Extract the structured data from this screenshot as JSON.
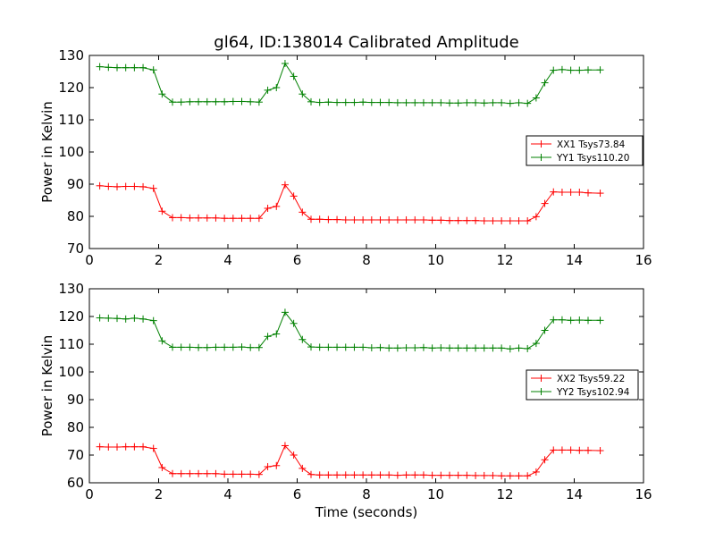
{
  "figure": {
    "title": "gl64, ID:138014 Calibrated Amplitude",
    "xlabel": "Time (seconds)"
  },
  "chart_data": [
    {
      "type": "line",
      "title": "gl64, ID:138014 Calibrated Amplitude",
      "xlabel": "",
      "ylabel": "Power in Kelvin",
      "xlim": [
        0,
        16
      ],
      "ylim": [
        70,
        130
      ],
      "xticks": [
        0,
        2,
        4,
        6,
        8,
        10,
        12,
        14,
        16
      ],
      "yticks": [
        70,
        80,
        90,
        100,
        110,
        120,
        130
      ],
      "grid": false,
      "legend_position": "center-right",
      "marker": "+",
      "x": [
        0.3,
        0.55,
        0.8,
        1.05,
        1.3,
        1.55,
        1.85,
        2.1,
        2.4,
        2.65,
        2.9,
        3.15,
        3.4,
        3.65,
        3.9,
        4.15,
        4.4,
        4.65,
        4.9,
        5.15,
        5.4,
        5.65,
        5.9,
        6.15,
        6.4,
        6.65,
        6.9,
        7.15,
        7.4,
        7.65,
        7.9,
        8.15,
        8.4,
        8.65,
        8.9,
        9.15,
        9.4,
        9.65,
        9.9,
        10.15,
        10.4,
        10.65,
        10.9,
        11.15,
        11.4,
        11.65,
        11.9,
        12.15,
        12.4,
        12.65,
        12.9,
        13.15,
        13.4,
        13.65,
        13.9,
        14.15,
        14.4,
        14.75
      ],
      "series": [
        {
          "name": "XX1 Tsys73.84",
          "color": "#ff0000",
          "values": [
            89.5,
            89.3,
            89.2,
            89.3,
            89.3,
            89.2,
            88.7,
            81.6,
            79.6,
            79.6,
            79.5,
            79.5,
            79.5,
            79.5,
            79.4,
            79.4,
            79.4,
            79.4,
            79.4,
            82.5,
            83.1,
            89.8,
            86.3,
            81.3,
            79.1,
            79.1,
            79.0,
            79.0,
            78.9,
            78.9,
            78.9,
            78.9,
            78.9,
            78.9,
            78.9,
            78.9,
            78.9,
            78.9,
            78.8,
            78.8,
            78.7,
            78.7,
            78.7,
            78.7,
            78.6,
            78.6,
            78.6,
            78.6,
            78.6,
            78.6,
            79.9,
            84.0,
            87.6,
            87.5,
            87.5,
            87.5,
            87.3,
            87.2
          ]
        },
        {
          "name": "YY1 Tsys110.20",
          "color": "#008000",
          "values": [
            126.5,
            126.3,
            126.2,
            126.2,
            126.2,
            126.2,
            125.5,
            118.0,
            115.5,
            115.5,
            115.6,
            115.6,
            115.6,
            115.6,
            115.6,
            115.7,
            115.7,
            115.6,
            115.5,
            119.2,
            120.0,
            127.5,
            123.5,
            118.0,
            115.6,
            115.4,
            115.5,
            115.4,
            115.4,
            115.4,
            115.5,
            115.4,
            115.4,
            115.4,
            115.3,
            115.3,
            115.3,
            115.3,
            115.3,
            115.3,
            115.2,
            115.2,
            115.3,
            115.3,
            115.2,
            115.3,
            115.3,
            115.1,
            115.3,
            115.1,
            116.8,
            121.5,
            125.4,
            125.6,
            125.4,
            125.4,
            125.5,
            125.5
          ]
        }
      ]
    },
    {
      "type": "line",
      "title": "",
      "xlabel": "Time (seconds)",
      "ylabel": "Power in Kelvin",
      "xlim": [
        0,
        16
      ],
      "ylim": [
        60,
        130
      ],
      "xticks": [
        0,
        2,
        4,
        6,
        8,
        10,
        12,
        14,
        16
      ],
      "yticks": [
        60,
        70,
        80,
        90,
        100,
        110,
        120,
        130
      ],
      "grid": false,
      "legend_position": "center-right",
      "marker": "+",
      "x": [
        0.3,
        0.55,
        0.8,
        1.05,
        1.3,
        1.55,
        1.85,
        2.1,
        2.4,
        2.65,
        2.9,
        3.15,
        3.4,
        3.65,
        3.9,
        4.15,
        4.4,
        4.65,
        4.9,
        5.15,
        5.4,
        5.65,
        5.9,
        6.15,
        6.4,
        6.65,
        6.9,
        7.15,
        7.4,
        7.65,
        7.9,
        8.15,
        8.4,
        8.65,
        8.9,
        9.15,
        9.4,
        9.65,
        9.9,
        10.15,
        10.4,
        10.65,
        10.9,
        11.15,
        11.4,
        11.65,
        11.9,
        12.15,
        12.4,
        12.65,
        12.9,
        13.15,
        13.4,
        13.65,
        13.9,
        14.15,
        14.4,
        14.75
      ],
      "series": [
        {
          "name": "XX2 Tsys59.22",
          "color": "#ff0000",
          "values": [
            73.0,
            72.9,
            72.9,
            73.0,
            73.0,
            73.0,
            72.4,
            65.5,
            63.3,
            63.3,
            63.3,
            63.3,
            63.3,
            63.3,
            63.1,
            63.1,
            63.1,
            63.1,
            63.0,
            65.8,
            66.2,
            73.4,
            70.0,
            65.2,
            63.0,
            62.8,
            62.8,
            62.8,
            62.8,
            62.8,
            62.8,
            62.8,
            62.8,
            62.8,
            62.7,
            62.8,
            62.8,
            62.8,
            62.7,
            62.7,
            62.7,
            62.7,
            62.7,
            62.6,
            62.6,
            62.6,
            62.5,
            62.5,
            62.5,
            62.5,
            63.9,
            68.3,
            71.8,
            71.8,
            71.8,
            71.7,
            71.7,
            71.6
          ]
        },
        {
          "name": "YY2 Tsys102.94",
          "color": "#008000",
          "values": [
            119.5,
            119.4,
            119.3,
            119.1,
            119.4,
            119.1,
            118.5,
            111.2,
            108.9,
            108.9,
            108.9,
            108.8,
            108.8,
            108.9,
            108.9,
            108.9,
            109.0,
            108.8,
            108.8,
            112.8,
            113.7,
            121.5,
            117.5,
            111.7,
            109.0,
            108.9,
            108.9,
            108.9,
            108.9,
            108.9,
            108.9,
            108.7,
            108.8,
            108.6,
            108.6,
            108.7,
            108.7,
            108.8,
            108.6,
            108.7,
            108.6,
            108.6,
            108.6,
            108.6,
            108.6,
            108.6,
            108.6,
            108.3,
            108.6,
            108.4,
            110.3,
            115.0,
            118.8,
            118.8,
            118.6,
            118.7,
            118.6,
            118.6
          ]
        }
      ]
    }
  ]
}
